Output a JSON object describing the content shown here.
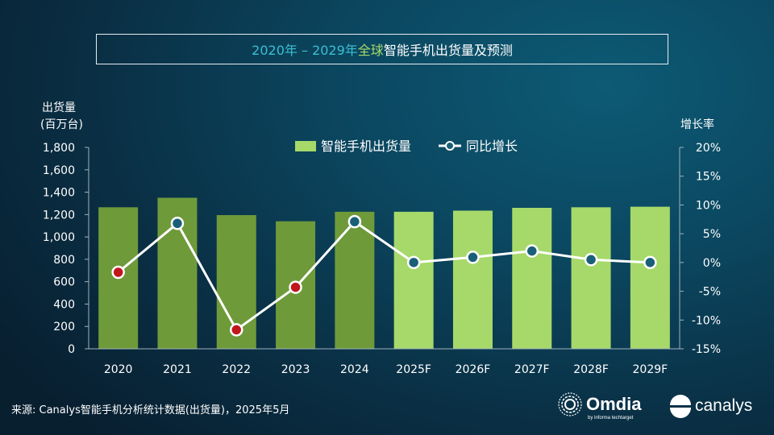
{
  "title": {
    "part1": "2020年 – 2029年 ",
    "part2": "全球",
    "part3": "智能手机出货量及预测"
  },
  "left_axis_title_line1": "出货量",
  "left_axis_title_line2": "(百万台)",
  "right_axis_title": "增长率",
  "source": "来源: Canalys智能手机分析统计数据(出货量)，2025年5月",
  "logos": {
    "omdia": "Omdia",
    "omdia_tagline": "by informa techtarget",
    "canalys": "canalys"
  },
  "colors": {
    "bar_actual": "#6e9a3a",
    "bar_forecast": "#a6d96a",
    "line": "#ffffff",
    "marker_negative": "#c0161c",
    "marker_positive": "#1a5f78",
    "title_teal": "#3bbfd2",
    "title_green": "#a6d96a"
  },
  "chart_data": {
    "type": "bar",
    "categories": [
      "2020",
      "2021",
      "2022",
      "2023",
      "2024",
      "2025F",
      "2026F",
      "2027F",
      "2028F",
      "2029F"
    ],
    "series": [
      {
        "name": "智能手机出货量",
        "type": "bar",
        "axis": "left",
        "values": [
          1265,
          1350,
          1195,
          1140,
          1225,
          1225,
          1235,
          1260,
          1265,
          1270
        ],
        "forecast_from_index": 5
      },
      {
        "name": "同比增长",
        "type": "line",
        "axis": "right",
        "values": [
          -1.7,
          6.8,
          -11.7,
          -4.3,
          7.1,
          0.0,
          0.9,
          2.0,
          0.5,
          0.0
        ]
      }
    ],
    "left_axis": {
      "range": [
        0,
        1800
      ],
      "ticks": [
        "0",
        "200",
        "400",
        "600",
        "800",
        "1,000",
        "1,200",
        "1,400",
        "1,600",
        "1,800"
      ]
    },
    "right_axis": {
      "range": [
        -15,
        20
      ],
      "ticks": [
        "-15%",
        "-10%",
        "-5%",
        "0%",
        "5%",
        "10%",
        "15%",
        "20%"
      ]
    },
    "grid": false,
    "legend_position": "top-center"
  }
}
